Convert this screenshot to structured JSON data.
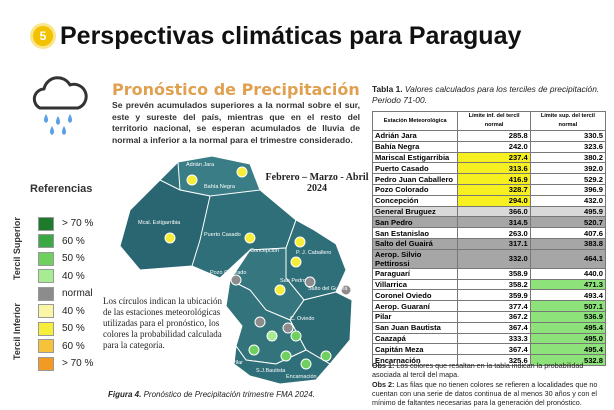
{
  "header": {
    "number": "5",
    "title": "Perspectivas climáticas para Paraguay"
  },
  "section_title": "Pronóstico de Precipitación",
  "intro": "Se prevén acumulados superiores a la normal sobre el sur, este y sureste del país, mientras que en el resto del territorio nacional, se esperan acumulados de lluvia de normal a inferior a la normal para el trimestre considerado.",
  "period": [
    "Febrero – Marzo - Abril",
    "2024"
  ],
  "legend": {
    "title": "Referencias",
    "upper_label": "Tercil Superior",
    "lower_label": "Tercil Inferior",
    "items": [
      {
        "label": "> 70 %",
        "color": "#1e7b2e"
      },
      {
        "label": "60 %",
        "color": "#3aa845"
      },
      {
        "label": "50 %",
        "color": "#6fd05f"
      },
      {
        "label": "40 %",
        "color": "#a7ec93"
      },
      {
        "label": "normal",
        "color": "#8c8c8c"
      },
      {
        "label": "40 %",
        "color": "#fbf6a6"
      },
      {
        "label": "50 %",
        "color": "#f6ee3a"
      },
      {
        "label": "60 %",
        "color": "#f6c23a"
      },
      {
        "label": "> 70 %",
        "color": "#f39a22"
      }
    ]
  },
  "map_labels": [
    "Adrián Jara",
    "Bahía Negra",
    "Mcal. Estigarribia",
    "Puerto Casado",
    "Concepción",
    "P. J. Caballero",
    "Pozo Colorado",
    "San Pedro",
    "Salto del Guairá",
    "C. Oviedo",
    "Pilar",
    "S.J.Bautista",
    "Encarnación"
  ],
  "note": "Los círculos indican la ubicación de las estaciones meteorológicas utilizadas para el pronóstico, los colores la probabilidad calculada para la categoría.",
  "figure_caption": {
    "label": "Figura 4.",
    "text": "Pronóstico de Precipitación trimestre FMA 2024."
  },
  "table": {
    "caption_label": "Tabla 1.",
    "caption": "Valores calculados para los terciles de precipitación. Periodo 71-00.",
    "columns": [
      "Estación Meteorológica",
      "Límite inf. del tercil normal",
      "Límite sup. del tercil normal"
    ],
    "rows": [
      {
        "cells": [
          "Adrián Jara",
          "285.8",
          "330.5"
        ]
      },
      {
        "cells": [
          "Bahía Negra",
          "242.0",
          "323.6"
        ]
      },
      {
        "cells": [
          "Mariscal Estigarribia",
          "237.4",
          "380.2"
        ],
        "fill": [
          null,
          "#f7f020",
          null
        ]
      },
      {
        "cells": [
          "Puerto Casado",
          "313.6",
          "392.0"
        ],
        "fill": [
          null,
          "#f7f020",
          null
        ]
      },
      {
        "cells": [
          "Pedro Juan Caballero",
          "416.9",
          "529.2"
        ],
        "fill": [
          null,
          "#f7f020",
          null
        ]
      },
      {
        "cells": [
          "Pozo Colorado",
          "328.7",
          "396.9"
        ],
        "fill": [
          null,
          "#f7f020",
          null
        ]
      },
      {
        "cells": [
          "Concepción",
          "294.0",
          "432.0"
        ],
        "fill": [
          null,
          "#f7f020",
          null
        ]
      },
      {
        "cells": [
          "General Bruguez",
          "366.0",
          "495.9"
        ],
        "fill": [
          "#d9d9d9",
          "#d9d9d9",
          "#d9d9d9"
        ]
      },
      {
        "cells": [
          "San Pedro",
          "314.5",
          "520.7"
        ],
        "fill": [
          "#a6a6a6",
          "#a6a6a6",
          "#a6a6a6"
        ]
      },
      {
        "cells": [
          "San Estanislao",
          "263.0",
          "407.6"
        ]
      },
      {
        "cells": [
          "Salto del Guairá",
          "317.1",
          "383.8"
        ],
        "fill": [
          "#a6a6a6",
          "#a6a6a6",
          "#a6a6a6"
        ]
      },
      {
        "cells": [
          "Aerop. Silvio Pettirossi",
          "332.0",
          "464.1"
        ],
        "fill": [
          "#a6a6a6",
          "#a6a6a6",
          "#a6a6a6"
        ]
      },
      {
        "cells": [
          "Paraguarí",
          "358.9",
          "440.0"
        ]
      },
      {
        "cells": [
          "Villarrica",
          "358.2",
          "471.3"
        ],
        "fill": [
          null,
          null,
          "#8ee27a"
        ]
      },
      {
        "cells": [
          "Coronel Oviedo",
          "359.9",
          "493.4"
        ]
      },
      {
        "cells": [
          "Aerop. Guaraní",
          "377.4",
          "507.1"
        ],
        "fill": [
          null,
          null,
          "#8ee27a"
        ]
      },
      {
        "cells": [
          "Pilar",
          "367.2",
          "536.9"
        ],
        "fill": [
          null,
          null,
          "#8ee27a"
        ]
      },
      {
        "cells": [
          "San Juan Bautista",
          "367.4",
          "495.4"
        ],
        "fill": [
          null,
          null,
          "#8ee27a"
        ]
      },
      {
        "cells": [
          "Caazapá",
          "333.3",
          "495.0"
        ],
        "fill": [
          null,
          null,
          "#8ee27a"
        ]
      },
      {
        "cells": [
          "Capitán Meza",
          "367.4",
          "495.4"
        ],
        "fill": [
          null,
          null,
          "#8ee27a"
        ]
      },
      {
        "cells": [
          "Encarnación",
          "325.6",
          "532.8"
        ],
        "fill": [
          null,
          null,
          "#8ee27a"
        ]
      }
    ]
  },
  "observations": [
    {
      "label": "Obs 1:",
      "text": "Los colores que resaltan en la tabla indican la probabilidad asociada al tercil del mapa."
    },
    {
      "label": "Obs 2:",
      "text": "Las filas que no tienen colores se refieren a localidades que no cuentan con una serie de datos continua de al menos 30 años y con el mínimo de faltantes necesarias para la generación del pronóstico."
    }
  ]
}
